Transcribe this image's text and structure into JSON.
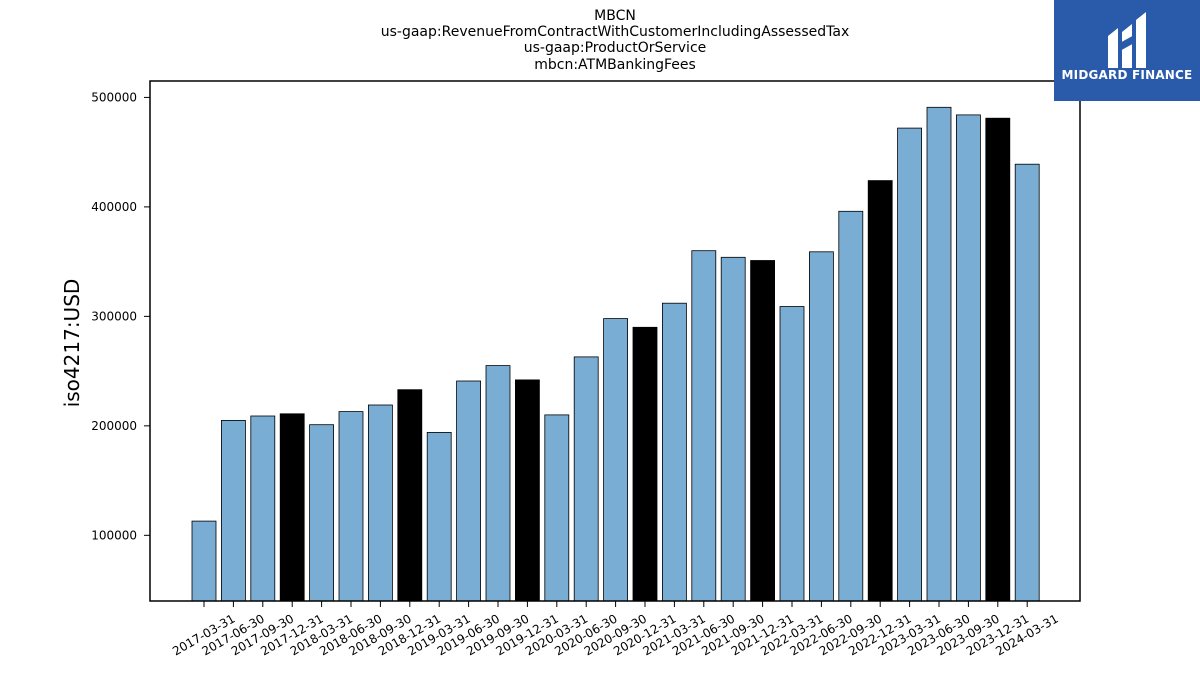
{
  "logo": {
    "text": "MIDGARD FINANCE",
    "bg_color": "#2a5aaa"
  },
  "chart_data": {
    "type": "bar",
    "title_lines": [
      "MBCN",
      "us-gaap:RevenueFromContractWithCustomerIncludingAssessedTax",
      "us-gaap:ProductOrService",
      "mbcn:ATMBankingFees"
    ],
    "xlabel": "",
    "ylabel": "iso4217:USD",
    "ylim": [
      40000,
      515000
    ],
    "yticks": [
      100000,
      200000,
      300000,
      400000,
      500000
    ],
    "grid": false,
    "colors": {
      "default": "#7aadd3",
      "highlight": "#000000",
      "edge": "#000000"
    },
    "highlight_rule": "year-end (12-31) bars are black",
    "categories": [
      "2017-03-31",
      "2017-06-30",
      "2017-09-30",
      "2017-12-31",
      "2018-03-31",
      "2018-06-30",
      "2018-09-30",
      "2018-12-31",
      "2019-03-31",
      "2019-06-30",
      "2019-09-30",
      "2019-12-31",
      "2020-03-31",
      "2020-06-30",
      "2020-09-30",
      "2020-12-31",
      "2021-03-31",
      "2021-06-30",
      "2021-09-30",
      "2021-12-31",
      "2022-03-31",
      "2022-06-30",
      "2022-09-30",
      "2022-12-31",
      "2023-03-31",
      "2023-06-30",
      "2023-09-30",
      "2023-12-31",
      "2024-03-31"
    ],
    "values": [
      113000,
      205000,
      209000,
      211000,
      201000,
      213000,
      219000,
      233000,
      194000,
      241000,
      255000,
      242000,
      210000,
      263000,
      298000,
      290000,
      312000,
      360000,
      354000,
      351000,
      309000,
      359000,
      396000,
      424000,
      472000,
      491000,
      484000,
      481000,
      439000
    ]
  }
}
